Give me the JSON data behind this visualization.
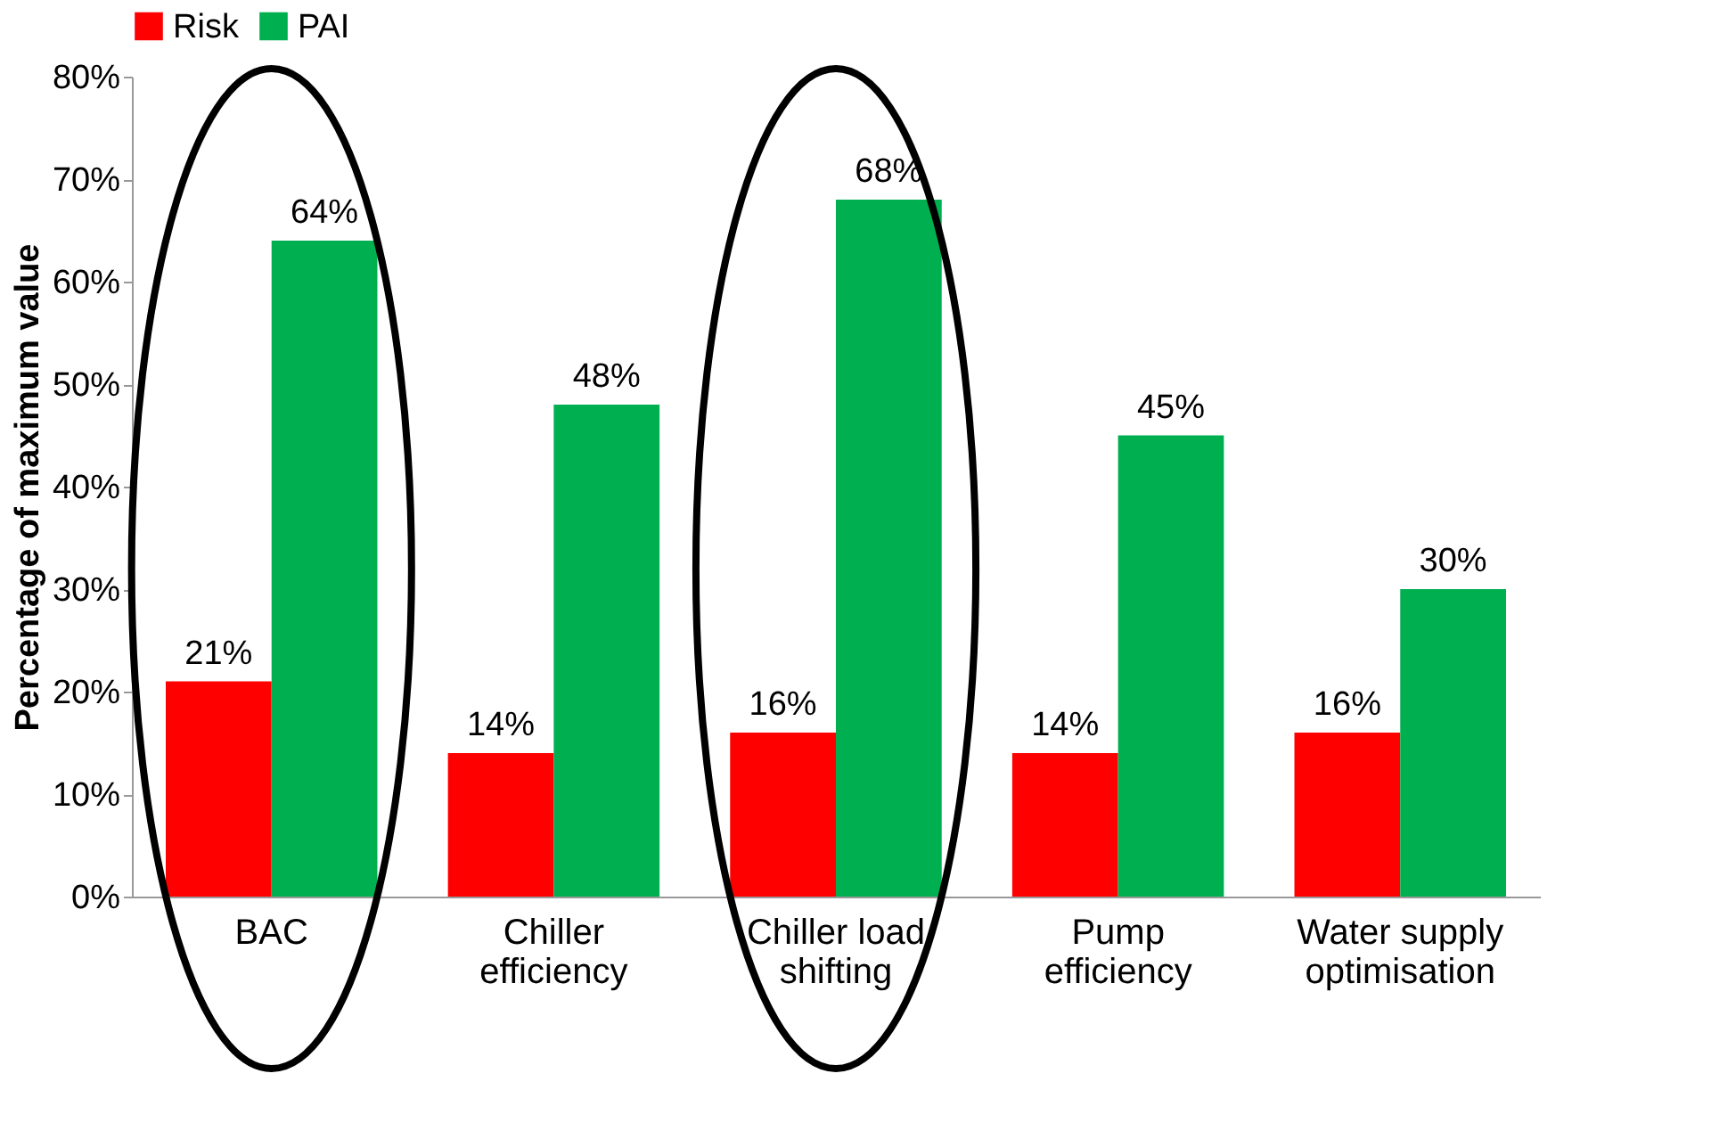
{
  "chart_data": {
    "type": "bar",
    "ylabel": "Percentage of maximum value",
    "categories": [
      "BAC",
      "Chiller efficiency",
      "Chiller load shifting",
      "Pump efficiency",
      "Water supply optimisation"
    ],
    "series": [
      {
        "name": "Risk",
        "color": "#ff0000",
        "values": [
          21,
          14,
          16,
          14,
          16
        ],
        "value_labels": [
          "21%",
          "14%",
          "16%",
          "14%",
          "16%"
        ]
      },
      {
        "name": "PAI",
        "color": "#00b050",
        "values": [
          64,
          48,
          68,
          45,
          30
        ],
        "value_labels": [
          "64%",
          "48%",
          "68%",
          "45%",
          "30%"
        ]
      }
    ],
    "ylim": [
      0,
      80
    ],
    "yticks": [
      {
        "value": 0,
        "label": "0%"
      },
      {
        "value": 10,
        "label": "10%"
      },
      {
        "value": 20,
        "label": "20%"
      },
      {
        "value": 30,
        "label": "30%"
      },
      {
        "value": 40,
        "label": "40%"
      },
      {
        "value": 50,
        "label": "50%"
      },
      {
        "value": 60,
        "label": "60%"
      },
      {
        "value": 70,
        "label": "70%"
      },
      {
        "value": 80,
        "label": "80%"
      }
    ],
    "legend": "top",
    "grid": false
  }
}
